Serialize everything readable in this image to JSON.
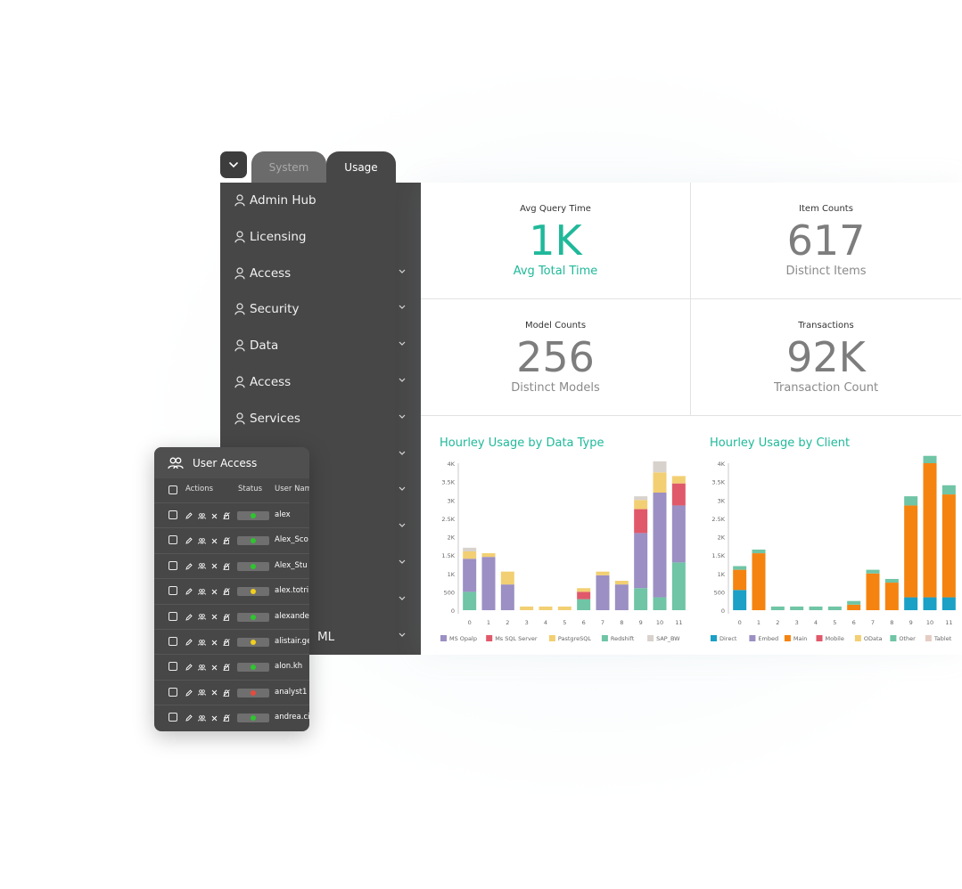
{
  "tabs": [
    {
      "label": "System"
    },
    {
      "label": "Usage"
    }
  ],
  "sidebar": {
    "items": [
      {
        "label": "Admin Hub",
        "expandable": false
      },
      {
        "label": "Licensing",
        "expandable": false
      },
      {
        "label": "Access",
        "expandable": true
      },
      {
        "label": "Security",
        "expandable": true
      },
      {
        "label": "Data",
        "expandable": true
      },
      {
        "label": "Access",
        "expandable": true
      },
      {
        "label": "Services",
        "expandable": true
      },
      {
        "label": "",
        "expandable": true
      },
      {
        "label": "",
        "expandable": true
      },
      {
        "label": "",
        "expandable": true
      },
      {
        "label": "",
        "expandable": true
      },
      {
        "label": "",
        "expandable": true
      },
      {
        "label": "ML",
        "expandable": true
      }
    ]
  },
  "kpis": {
    "avg_query": {
      "title": "Avg Query Time",
      "value": "1K",
      "subtitle": "Avg Total Time"
    },
    "item_counts": {
      "title": "Item Counts",
      "value": "617",
      "subtitle": "Distinct Items"
    },
    "model_counts": {
      "title": "Model Counts",
      "value": "256",
      "subtitle": "Distinct Models"
    },
    "transactions": {
      "title": "Transactions",
      "value": "92K",
      "subtitle": "Transaction Count"
    }
  },
  "colors": {
    "accent": "#1fb99a",
    "panel": "#474747",
    "status_green": "#2ec52e",
    "status_yellow": "#f2cf1c",
    "status_red": "#e64a3c"
  },
  "chart_data": [
    {
      "type": "bar",
      "stacked": true,
      "title": "Hourley Usage by Data Type",
      "categories": [
        "0",
        "1",
        "2",
        "3",
        "4",
        "5",
        "6",
        "7",
        "8",
        "9",
        "10",
        "11"
      ],
      "ylim": [
        0,
        4000
      ],
      "yticks": [
        0,
        500,
        1000,
        1500,
        2000,
        2500,
        3000,
        3500,
        4000
      ],
      "ytick_labels": [
        "0",
        "500",
        "1K",
        "1.5K",
        "2K",
        "2.5K",
        "3K",
        "3.5K",
        "4K"
      ],
      "legend_position": "bottom",
      "series": [
        {
          "name": "Redshift",
          "color": "#6fc5a5",
          "values": [
            500,
            0,
            0,
            0,
            0,
            0,
            300,
            0,
            0,
            600,
            350,
            1300
          ]
        },
        {
          "name": "MS Opalp",
          "color": "#9b8fc3",
          "values": [
            900,
            1450,
            700,
            0,
            0,
            0,
            0,
            950,
            700,
            1500,
            2850,
            1550
          ]
        },
        {
          "name": "Ms SQL Server",
          "color": "#e0596a",
          "values": [
            0,
            0,
            0,
            0,
            0,
            0,
            200,
            0,
            0,
            650,
            0,
            600
          ]
        },
        {
          "name": "PastgreSQL",
          "color": "#f2cf72",
          "values": [
            200,
            100,
            350,
            100,
            100,
            100,
            100,
            100,
            100,
            250,
            550,
            200
          ]
        },
        {
          "name": "SAP_BW",
          "color": "#d8d2cd",
          "values": [
            100,
            0,
            0,
            0,
            0,
            0,
            0,
            0,
            0,
            100,
            300,
            0
          ]
        }
      ],
      "stack_order": [
        "Redshift",
        "MS Opalp",
        "Ms SQL Server",
        "PastgreSQL",
        "SAP_BW"
      ],
      "legend": [
        "MS Opalp",
        "Ms SQL Server",
        "PastgreSQL",
        "Redshift",
        "SAP_BW"
      ],
      "extra_top": {
        "6": {
          "color": "#9b8fc3",
          "value": 250
        },
        "7": {
          "color": "#f2cf72",
          "value": 0
        }
      }
    },
    {
      "type": "bar",
      "stacked": true,
      "title": "Hourley Usage by Client",
      "categories": [
        "0",
        "1",
        "2",
        "3",
        "4",
        "5",
        "6",
        "7",
        "8",
        "9",
        "10",
        "11"
      ],
      "ylim": [
        0,
        4000
      ],
      "yticks": [
        0,
        500,
        1000,
        1500,
        2000,
        2500,
        3000,
        3500,
        4000
      ],
      "ytick_labels": [
        "0",
        "500",
        "1K",
        "1.5K",
        "2K",
        "2.5K",
        "3K",
        "3.5K",
        "4K"
      ],
      "legend_position": "bottom",
      "series": [
        {
          "name": "Direct",
          "color": "#1ba0c6",
          "values": [
            550,
            0,
            0,
            0,
            0,
            0,
            0,
            0,
            0,
            350,
            350,
            350
          ]
        },
        {
          "name": "Embed",
          "color": "#9b8fc3",
          "values": [
            0,
            0,
            0,
            0,
            0,
            0,
            0,
            0,
            0,
            0,
            0,
            0
          ]
        },
        {
          "name": "Main",
          "color": "#f5830f",
          "values": [
            550,
            1550,
            0,
            0,
            0,
            0,
            150,
            1000,
            750,
            2500,
            3650,
            2800
          ]
        },
        {
          "name": "Mobile",
          "color": "#e0596a",
          "values": [
            0,
            0,
            0,
            0,
            0,
            0,
            0,
            0,
            0,
            0,
            0,
            0
          ]
        },
        {
          "name": "OData",
          "color": "#f2cf72",
          "values": [
            0,
            0,
            0,
            0,
            0,
            0,
            0,
            0,
            0,
            0,
            0,
            0
          ]
        },
        {
          "name": "Other",
          "color": "#6fc5a5",
          "values": [
            100,
            100,
            100,
            100,
            100,
            100,
            100,
            100,
            100,
            250,
            200,
            250
          ]
        },
        {
          "name": "Tablet",
          "color": "#e5cdc4",
          "values": [
            0,
            0,
            0,
            0,
            0,
            0,
            0,
            0,
            0,
            0,
            0,
            0
          ]
        }
      ],
      "legend": [
        "Direct",
        "Embed",
        "Main",
        "Mobile",
        "OData",
        "Other",
        "Tablet"
      ]
    }
  ],
  "user_access": {
    "title": "User Access",
    "columns": {
      "actions": "Actions",
      "status": "Status",
      "user_name": "User Nam"
    },
    "rows": [
      {
        "user": "alex",
        "status": "green"
      },
      {
        "user": "Alex_Sco",
        "status": "green"
      },
      {
        "user": "Alex_Stu",
        "status": "green"
      },
      {
        "user": "alex.totri",
        "status": "yellow"
      },
      {
        "user": "alexander",
        "status": "green"
      },
      {
        "user": "alistair.ge",
        "status": "yellow"
      },
      {
        "user": "alon.kh",
        "status": "green"
      },
      {
        "user": "analyst1",
        "status": "red"
      },
      {
        "user": "andrea.ci",
        "status": "green"
      }
    ]
  }
}
